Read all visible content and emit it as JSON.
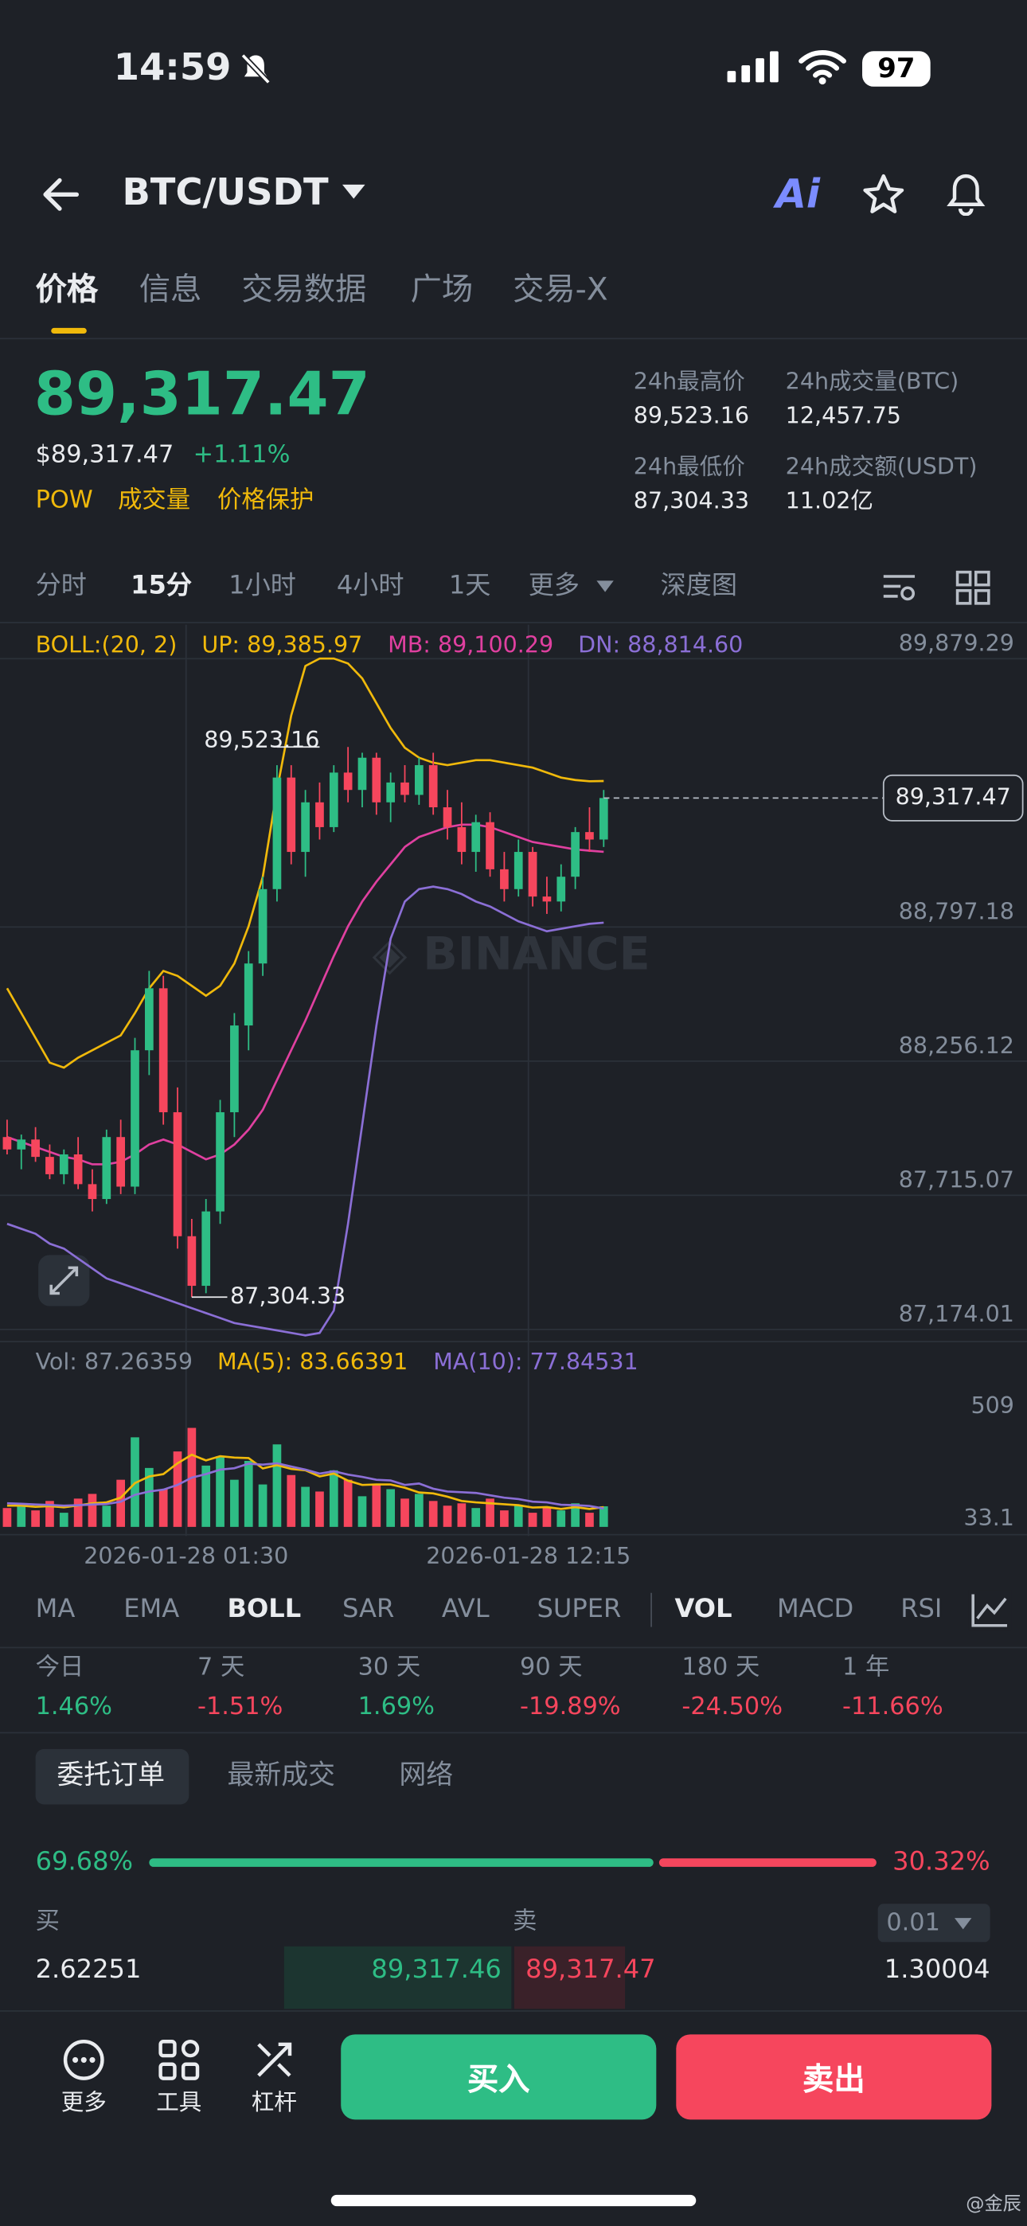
{
  "status_bar": {
    "time": "14:59",
    "battery": "97"
  },
  "header": {
    "pair": "BTC/USDT",
    "ai": "Ai"
  },
  "tabs": [
    "价格",
    "信息",
    "交易数据",
    "广场",
    "交易-X"
  ],
  "price": {
    "last": "89,317.47",
    "usd": "$89,317.47",
    "change": "+1.11%",
    "tags": [
      "POW",
      "成交量",
      "价格保护"
    ]
  },
  "stats": [
    {
      "label": "24h最高价",
      "value": "89,523.16"
    },
    {
      "label": "24h成交量(BTC)",
      "value": "12,457.75"
    },
    {
      "label": "24h最低价",
      "value": "87,304.33"
    },
    {
      "label": "24h成交额(USDT)",
      "value": "11.02亿"
    }
  ],
  "intervals": [
    "分时",
    "15分",
    "1小时",
    "4小时",
    "1天",
    "更多",
    "深度图"
  ],
  "chart_data": {
    "type": "candlestick",
    "boll_labels": [
      "BOLL:(20, 2)",
      "UP: 89,385.97",
      "MB: 89,100.29",
      "DN: 88,814.60"
    ],
    "ylim": [
      87125,
      89988
    ],
    "yticks": [
      {
        "value": 89879.29,
        "label": "89,879.29"
      },
      {
        "value": 88797.18,
        "label": "88,797.18"
      },
      {
        "value": 88256.12,
        "label": "88,256.12"
      },
      {
        "value": 87715.07,
        "label": "87,715.07"
      },
      {
        "value": 87174.01,
        "label": "87,174.01"
      }
    ],
    "grid": true,
    "open": [
      87950,
      87900,
      87940,
      87870,
      87800,
      87880,
      87760,
      87700,
      87950,
      87750,
      88300,
      88550,
      88050,
      87550,
      87350,
      87650,
      88050,
      88400,
      88650,
      88950,
      89400,
      89100,
      89300,
      89200,
      89420,
      89350,
      89480,
      89300,
      89380,
      89330,
      89450,
      89280,
      89200,
      89100,
      89220,
      89030,
      88950,
      89100,
      88920,
      88900,
      89000,
      89180,
      89150
    ],
    "high": [
      88020,
      87960,
      87990,
      87920,
      87900,
      87950,
      87820,
      87980,
      88020,
      88350,
      88620,
      88600,
      88150,
      87620,
      87700,
      88100,
      88450,
      88700,
      89000,
      89450,
      89450,
      89350,
      89380,
      89450,
      89523.16,
      89500,
      89500,
      89420,
      89450,
      89480,
      89500,
      89350,
      89300,
      89250,
      89260,
      89100,
      89150,
      89120,
      89000,
      89050,
      89200,
      89280,
      89350
    ],
    "low": [
      87880,
      87820,
      87850,
      87780,
      87760,
      87740,
      87650,
      87680,
      87720,
      87720,
      88200,
      88000,
      87500,
      87304.33,
      87320,
      87600,
      87950,
      88300,
      88600,
      88900,
      89050,
      89000,
      89150,
      89180,
      89300,
      89280,
      89250,
      89220,
      89300,
      89290,
      89250,
      89150,
      89050,
      89020,
      89000,
      88900,
      88920,
      88880,
      88850,
      88860,
      88950,
      89100,
      89120
    ],
    "close": [
      87900,
      87940,
      87870,
      87800,
      87880,
      87760,
      87700,
      87950,
      87750,
      88300,
      88550,
      88050,
      87550,
      87350,
      87650,
      88050,
      88400,
      88650,
      88950,
      89400,
      89100,
      89300,
      89200,
      89420,
      89350,
      89480,
      89300,
      89380,
      89330,
      89450,
      89280,
      89200,
      89100,
      89220,
      89030,
      88950,
      89100,
      88920,
      88900,
      89000,
      89180,
      89150,
      89317.47
    ],
    "up_color": "#2ebd85",
    "down_color": "#f6465d",
    "boll": [
      {
        "color": "#f0b90b",
        "values": [
          88550,
          88450,
          88350,
          88250,
          88230,
          88270,
          88300,
          88330,
          88360,
          88450,
          88550,
          88620,
          88600,
          88560,
          88520,
          88560,
          88650,
          88800,
          89000,
          89350,
          89650,
          89850,
          89880,
          89880,
          89860,
          89800,
          89700,
          89600,
          89520,
          89480,
          89460,
          89450,
          89460,
          89470,
          89470,
          89460,
          89450,
          89440,
          89420,
          89400,
          89390,
          89385,
          89385.97
        ]
      },
      {
        "color": "#e040a0",
        "values": [
          87950,
          87930,
          87910,
          87890,
          87870,
          87860,
          87840,
          87840,
          87850,
          87880,
          87920,
          87940,
          87920,
          87890,
          87860,
          87880,
          87920,
          87980,
          88060,
          88180,
          88300,
          88420,
          88550,
          88680,
          88800,
          88900,
          88980,
          89050,
          89120,
          89160,
          89180,
          89200,
          89210,
          89210,
          89200,
          89180,
          89160,
          89140,
          89130,
          89120,
          89110,
          89105,
          89100.29
        ]
      },
      {
        "color": "#8b6fd6",
        "values": [
          87600,
          87580,
          87560,
          87520,
          87500,
          87460,
          87420,
          87380,
          87360,
          87340,
          87320,
          87300,
          87280,
          87260,
          87240,
          87220,
          87200,
          87190,
          87180,
          87170,
          87160,
          87150,
          87160,
          87250,
          87600,
          88000,
          88400,
          88750,
          88900,
          88950,
          88960,
          88950,
          88930,
          88900,
          88880,
          88850,
          88820,
          88800,
          88780,
          88790,
          88800,
          88810,
          88814.6
        ]
      }
    ],
    "high_label": "89,523.16",
    "low_label": "87,304.33",
    "last_value": 89317.47,
    "last_label": "89,317.47",
    "x_labels": [
      "2026-01-28 01:30",
      "2026-01-28 12:15"
    ],
    "volume": {
      "labels": [
        "Vol: 87.26359",
        "MA(5): 83.66391",
        "MA(10): 77.84531"
      ],
      "ylim": [
        -33,
        756
      ],
      "yticks": [
        509,
        33.1
      ],
      "values": [
        80,
        95,
        70,
        110,
        60,
        120,
        140,
        90,
        200,
        380,
        250,
        160,
        320,
        420,
        260,
        300,
        200,
        280,
        180,
        350,
        220,
        170,
        150,
        240,
        200,
        130,
        180,
        160,
        120,
        140,
        110,
        90,
        100,
        80,
        120,
        70,
        90,
        60,
        80,
        70,
        100,
        60,
        87.26359
      ],
      "ma": [
        {
          "color": "#f0b90b",
          "values": [
            90,
            90,
            85,
            88,
            83,
            91,
            100,
            104,
            124,
            186,
            214,
            224,
            270,
            306,
            282,
            300,
            294,
            292,
            248,
            262,
            246,
            240,
            214,
            226,
            196,
            178,
            180,
            180,
            166,
            146,
            142,
            128,
            110,
            104,
            100,
            96,
            92,
            82,
            84,
            76,
            84,
            76,
            83.66391
          ]
        },
        {
          "color": "#8b6fd6",
          "values": [
            100,
            98,
            95,
            93,
            90,
            92,
            95,
            97,
            107,
            136,
            150,
            158,
            178,
            209,
            224,
            243,
            249,
            268,
            264,
            270,
            256,
            243,
            226,
            236,
            222,
            212,
            200,
            197,
            178,
            184,
            162,
            150,
            147,
            144,
            134,
            124,
            118,
            107,
            104,
            94,
            92,
            89,
            77.84531
          ]
        }
      ]
    }
  },
  "indicators": [
    "MA",
    "EMA",
    "BOLL",
    "SAR",
    "AVL",
    "SUPER",
    "VOL",
    "MACD",
    "RSI"
  ],
  "performance": [
    {
      "period": "今日",
      "change": "1.46%"
    },
    {
      "period": "7 天",
      "change": "-1.51%"
    },
    {
      "period": "30 天",
      "change": "1.69%"
    },
    {
      "period": "90 天",
      "change": "-19.89%"
    },
    {
      "period": "180 天",
      "change": "-24.50%"
    },
    {
      "period": "1 年",
      "change": "-11.66%"
    }
  ],
  "book_tabs": [
    "委托订单",
    "最新成交",
    "网络"
  ],
  "depth_ratio": {
    "buy": 69.68,
    "sell": 30.32,
    "buy_label": "69.68%",
    "sell_label": "30.32%"
  },
  "book": {
    "buy_label": "买",
    "sell_label": "卖",
    "precision": "0.01",
    "rows": [
      [
        "2.62251",
        "89,317.46",
        "89,317.47",
        "1.30004"
      ]
    ]
  },
  "bottom": {
    "actions": [
      "更多",
      "工具",
      "杠杆"
    ],
    "buy": "买入",
    "sell": "卖出"
  },
  "watermark": "@金辰"
}
